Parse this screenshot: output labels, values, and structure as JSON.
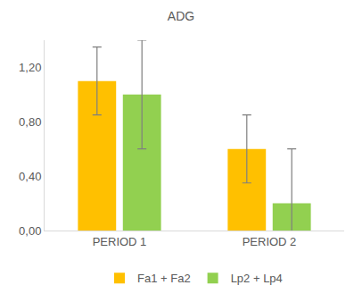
{
  "chart_data": {
    "type": "bar",
    "title": "ADG",
    "categories": [
      "PERIOD 1",
      "PERIOD 2"
    ],
    "series": [
      {
        "name": "Fa1 + Fa2",
        "color": "#FFC000",
        "values": [
          1.1,
          0.6
        ],
        "error": [
          0.25,
          0.25
        ]
      },
      {
        "name": "Lp2 + Lp4",
        "color": "#92D050",
        "values": [
          1.0,
          0.2
        ],
        "error": [
          0.4,
          0.4
        ]
      }
    ],
    "ylim": [
      0,
      1.4
    ],
    "yticks": [
      {
        "value": 0,
        "label": "0,00"
      },
      {
        "value": 0.4,
        "label": "0,40"
      },
      {
        "value": 0.8,
        "label": "0,80"
      },
      {
        "value": 1.2,
        "label": "1,20"
      }
    ],
    "grid": false,
    "legend": "bottom"
  }
}
